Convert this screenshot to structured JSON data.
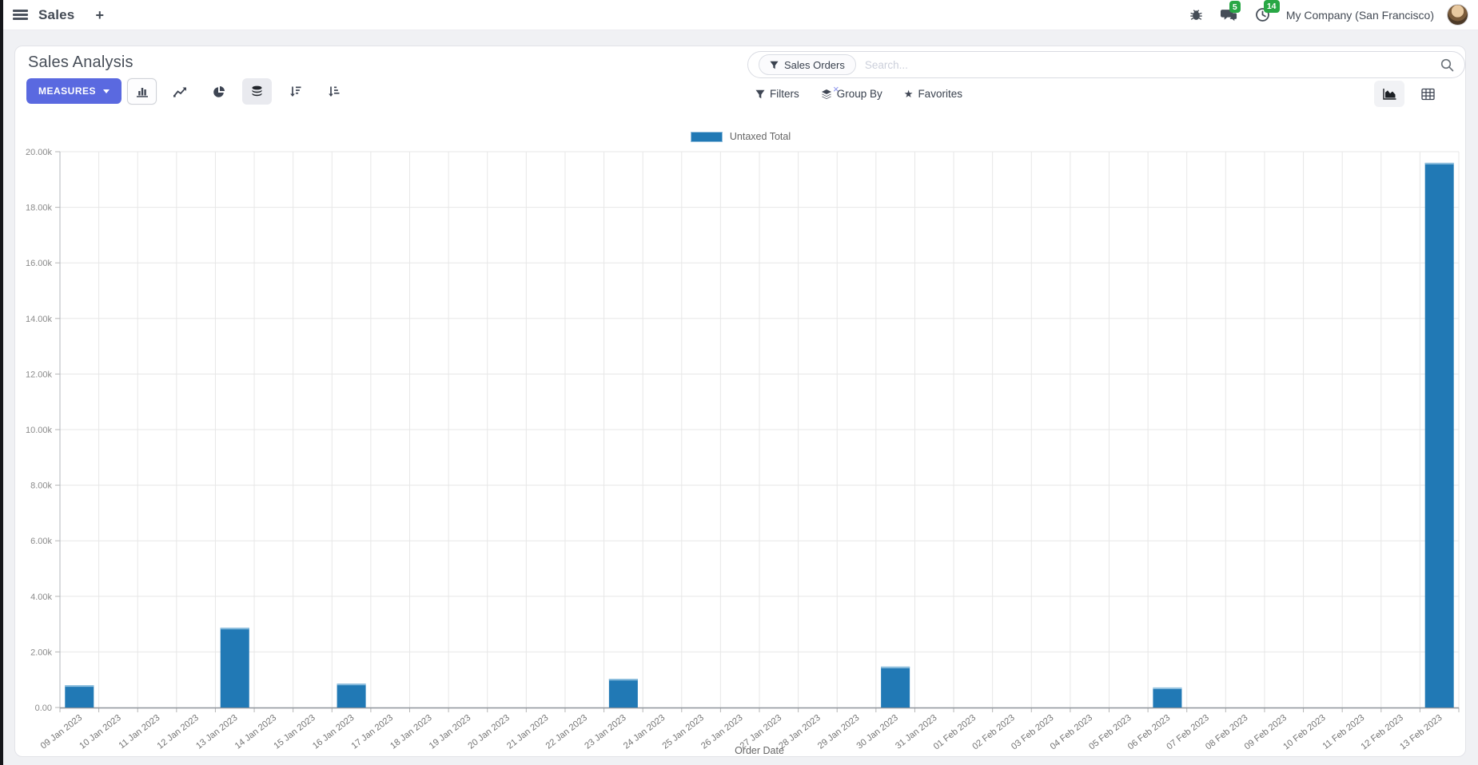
{
  "navbar": {
    "app_name": "Sales",
    "plus_label": "+",
    "messages_badge": "5",
    "activities_badge": "14",
    "company": "My Company (San Francisco)"
  },
  "control_panel": {
    "title": "Sales Analysis",
    "measures_label": "MEASURES",
    "search": {
      "facet": "Sales Orders",
      "facet_remove": "×",
      "placeholder": "Search..."
    },
    "buttons": {
      "filters": "Filters",
      "group_by": "Group By",
      "favorites": "Favorites"
    }
  },
  "colors": {
    "bar": "#2179b5",
    "bar_cap": "#8ebfde",
    "accent": "#5a69e0",
    "badge_green": "#28a745",
    "grid": "#e7e7e7",
    "axis_text": "#8a8a8a"
  },
  "chart_data": {
    "type": "bar",
    "title": "",
    "xlabel": "Order Date",
    "ylabel": "",
    "ylim": [
      0,
      20000
    ],
    "y_tick_step": 2000,
    "y_tick_labels": [
      "0.00",
      "2.00k",
      "4.00k",
      "6.00k",
      "8.00k",
      "10.00k",
      "12.00k",
      "14.00k",
      "16.00k",
      "18.00k",
      "20.00k"
    ],
    "legend_position": "top",
    "grid": true,
    "categories": [
      "09 Jan 2023",
      "10 Jan 2023",
      "11 Jan 2023",
      "12 Jan 2023",
      "13 Jan 2023",
      "14 Jan 2023",
      "15 Jan 2023",
      "16 Jan 2023",
      "17 Jan 2023",
      "18 Jan 2023",
      "19 Jan 2023",
      "20 Jan 2023",
      "21 Jan 2023",
      "22 Jan 2023",
      "23 Jan 2023",
      "24 Jan 2023",
      "25 Jan 2023",
      "26 Jan 2023",
      "27 Jan 2023",
      "28 Jan 2023",
      "29 Jan 2023",
      "30 Jan 2023",
      "31 Jan 2023",
      "01 Feb 2023",
      "02 Feb 2023",
      "03 Feb 2023",
      "04 Feb 2023",
      "05 Feb 2023",
      "06 Feb 2023",
      "07 Feb 2023",
      "08 Feb 2023",
      "09 Feb 2023",
      "10 Feb 2023",
      "11 Feb 2023",
      "12 Feb 2023",
      "13 Feb 2023"
    ],
    "series": [
      {
        "name": "Untaxed Total",
        "color": "#2179b5",
        "values": [
          800,
          0,
          0,
          0,
          2870,
          0,
          0,
          860,
          0,
          0,
          0,
          0,
          0,
          0,
          1030,
          0,
          0,
          0,
          0,
          0,
          0,
          1470,
          0,
          0,
          0,
          0,
          0,
          0,
          720,
          0,
          0,
          0,
          0,
          0,
          0,
          19600
        ]
      }
    ]
  }
}
